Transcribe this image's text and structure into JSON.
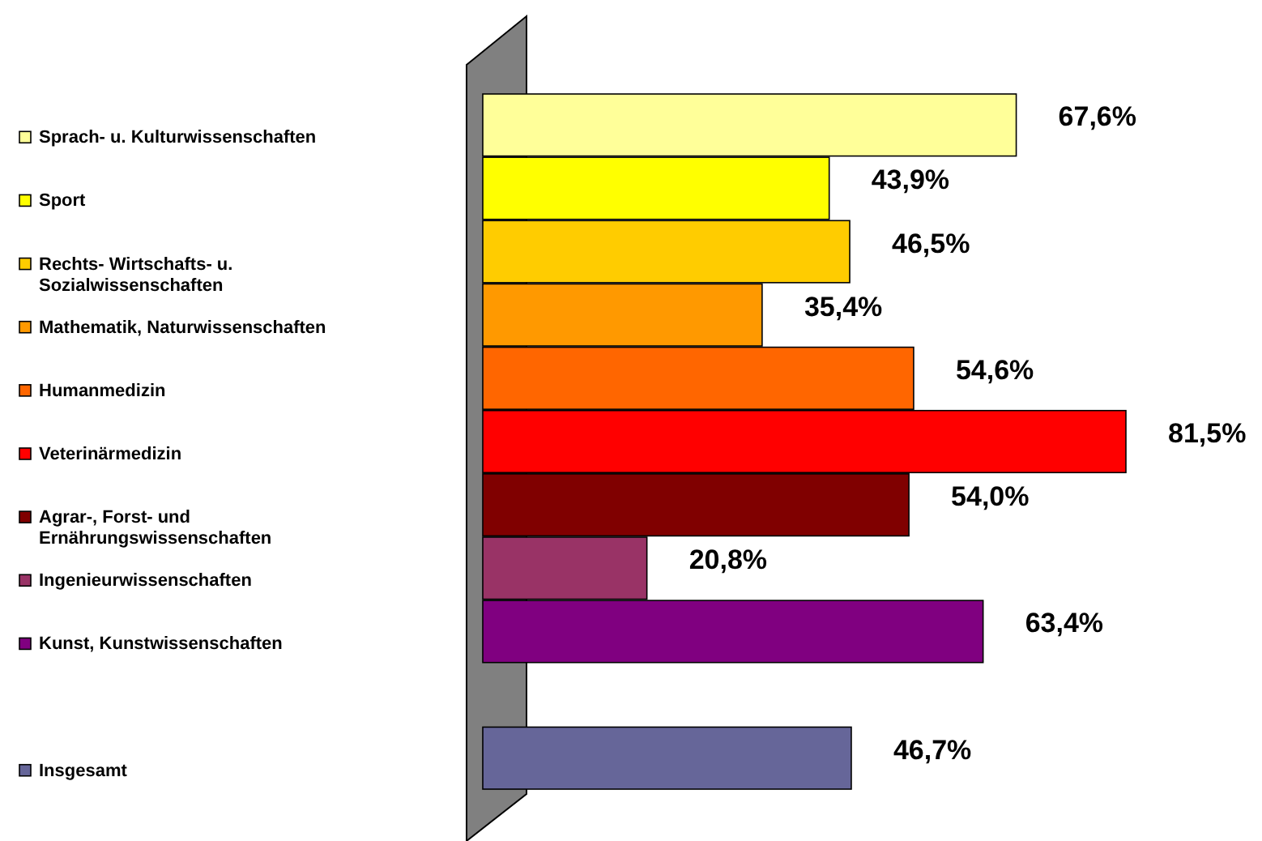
{
  "chart_data": {
    "type": "bar",
    "orientation": "horizontal",
    "categories": [
      "Sprach- u. Kulturwissenschaften",
      "Sport",
      "Rechts- Wirtschafts- u. Sozialwissenschaften",
      "Mathematik, Naturwissenschaften",
      "Humanmedizin",
      "Veterinärmedizin",
      "Agrar-, Forst- und Ernährungswissenschaften",
      "Ingenieurwissenschaften",
      "Kunst, Kunstwissenschaften",
      null,
      "Insgesamt"
    ],
    "values": [
      67.6,
      43.9,
      46.5,
      35.4,
      54.6,
      81.5,
      54.0,
      20.8,
      63.4,
      null,
      46.7
    ],
    "value_labels": [
      "67,6%",
      "43,9%",
      "46,5%",
      "35,4%",
      "54,6%",
      "81,5%",
      "54,0%",
      "20,8%",
      "63,4%",
      null,
      "46,7%"
    ],
    "colors": [
      "#ffff99",
      "#ffff00",
      "#ffcc00",
      "#ff9900",
      "#ff6600",
      "#ff0000",
      "#800000",
      "#993366",
      "#800080",
      null,
      "#666699"
    ]
  }
}
